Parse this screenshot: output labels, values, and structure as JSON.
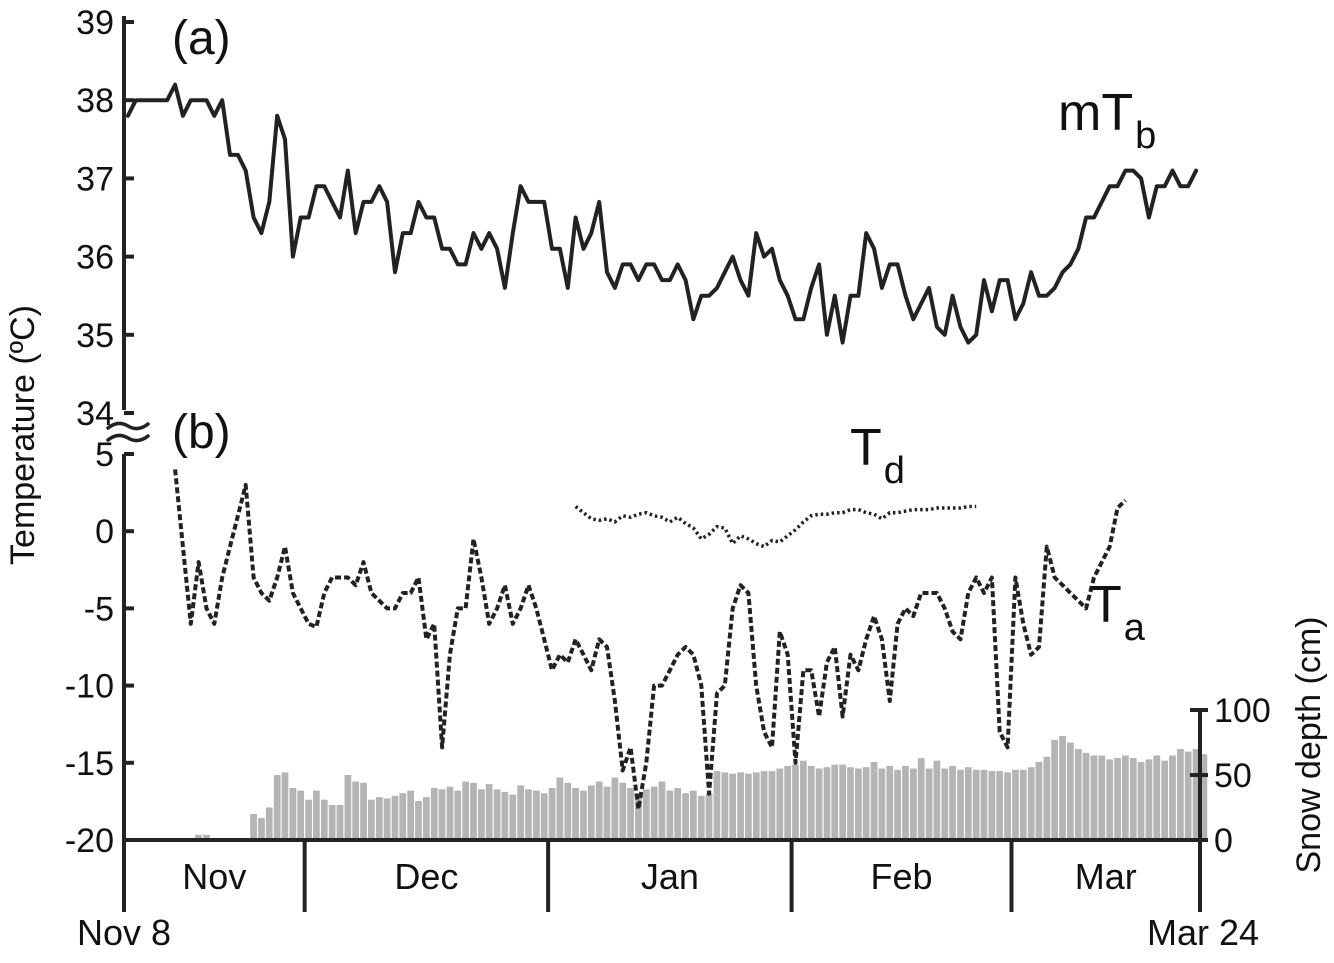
{
  "chart_data": {
    "type": "line",
    "x_axis": {
      "start_label": "Nov 8",
      "end_label": "Mar 24",
      "days": 137,
      "months": [
        "Nov",
        "Dec",
        "Jan",
        "Feb",
        "Mar"
      ]
    },
    "y_axis_left": {
      "title": "Temperature (ºC)",
      "upper_ticks": [
        "39",
        "38",
        "37",
        "36",
        "35",
        "34"
      ],
      "upper_range": [
        34,
        39
      ],
      "lower_ticks": [
        "5",
        "0",
        "-5",
        "-10",
        "-15",
        "-20"
      ],
      "lower_range": [
        -20,
        5
      ]
    },
    "y_axis_right": {
      "title": "Snow depth (cm)",
      "ticks": [
        "100",
        "50",
        "0"
      ],
      "range": [
        0,
        100
      ]
    },
    "panels": [
      {
        "label": "(a)"
      },
      {
        "label": "(b)"
      }
    ],
    "series": [
      {
        "name": "mT",
        "name_subscript": "b",
        "panel": "a",
        "style": "solid",
        "start_day": 0,
        "values": [
          37.8,
          38.0,
          38.0,
          38.0,
          38.0,
          38.0,
          38.2,
          37.8,
          38.0,
          38.0,
          38.0,
          37.8,
          38.0,
          37.3,
          37.3,
          37.1,
          36.5,
          36.3,
          36.7,
          37.8,
          37.5,
          36.0,
          36.5,
          36.5,
          36.9,
          36.9,
          36.7,
          36.5,
          37.1,
          36.3,
          36.7,
          36.7,
          36.9,
          36.7,
          35.8,
          36.3,
          36.3,
          36.7,
          36.5,
          36.5,
          36.1,
          36.1,
          35.9,
          35.9,
          36.3,
          36.1,
          36.3,
          36.1,
          35.6,
          36.3,
          36.9,
          36.7,
          36.7,
          36.7,
          36.1,
          36.1,
          35.6,
          36.5,
          36.1,
          36.3,
          36.7,
          35.8,
          35.6,
          35.9,
          35.9,
          35.7,
          35.9,
          35.9,
          35.7,
          35.7,
          35.9,
          35.7,
          35.2,
          35.5,
          35.5,
          35.6,
          35.8,
          36.0,
          35.7,
          35.5,
          36.3,
          36.0,
          36.1,
          35.7,
          35.5,
          35.2,
          35.2,
          35.6,
          35.9,
          35.0,
          35.5,
          34.9,
          35.5,
          35.5,
          36.3,
          36.1,
          35.6,
          35.9,
          35.9,
          35.5,
          35.2,
          35.4,
          35.6,
          35.1,
          35.0,
          35.5,
          35.1,
          34.9,
          35.0,
          35.7,
          35.3,
          35.7,
          35.7,
          35.2,
          35.4,
          35.8,
          35.5,
          35.5,
          35.6,
          35.8,
          35.9,
          36.1,
          36.5,
          36.5,
          36.7,
          36.9,
          36.9,
          37.1,
          37.1,
          37.0,
          36.5,
          36.9,
          36.9,
          37.1,
          36.9,
          36.9,
          37.1
        ]
      },
      {
        "name": "T",
        "name_subscript": "a",
        "panel": "b",
        "style": "dashed",
        "start_day": 6,
        "values": [
          4,
          -1,
          -6,
          -2,
          -5,
          -6,
          -3,
          -1,
          1,
          3,
          -3,
          -4,
          -4.5,
          -3,
          -1,
          -4,
          -5,
          -6,
          -6.2,
          -4,
          -3,
          -3,
          -3,
          -3.5,
          -2,
          -4,
          -4.5,
          -5,
          -5,
          -4,
          -4,
          -3,
          -7,
          -6,
          -14,
          -8,
          -5,
          -5,
          -0.5,
          -3,
          -6,
          -5,
          -3.5,
          -6,
          -5,
          -3.5,
          -5,
          -7,
          -9,
          -8,
          -8.5,
          -7,
          -8,
          -9,
          -7,
          -7.5,
          -11,
          -15.5,
          -14,
          -18,
          -15,
          -10,
          -10,
          -9,
          -8,
          -7.5,
          -8,
          -10,
          -17,
          -10.5,
          -10,
          -5,
          -3.5,
          -4,
          -10,
          -13,
          -14,
          -6.5,
          -8,
          -15,
          -9,
          -9,
          -12,
          -8.5,
          -7.5,
          -12,
          -8,
          -9,
          -7,
          -5.5,
          -7,
          -11,
          -6,
          -5,
          -5.5,
          -4,
          -4,
          -4,
          -5,
          -6.5,
          -7,
          -4,
          -3,
          -4,
          -3,
          -13,
          -14,
          -3,
          -6,
          -8,
          -7.5,
          -1,
          -3,
          -3.5,
          -4,
          -4.5,
          -5,
          -3,
          -2,
          -1,
          1.5,
          2
        ]
      },
      {
        "name": "T",
        "name_subscript": "d",
        "panel": "b",
        "style": "dotted",
        "start_day": 57,
        "values": [
          1.6,
          1.2,
          0.8,
          0.7,
          0.8,
          0.6,
          1.0,
          0.9,
          1.1,
          1.2,
          1.0,
          0.9,
          0.6,
          0.9,
          0.5,
          0.2,
          -0.5,
          -0.2,
          0.3,
          0.2,
          -0.8,
          -0.3,
          -0.5,
          -0.8,
          -1.0,
          -0.6,
          -0.7,
          -0.3,
          0.1,
          0.6,
          1.0,
          1.1,
          1.1,
          1.2,
          1.2,
          1.4,
          1.4,
          1.2,
          1.1,
          0.8,
          1.2,
          1.2,
          1.3,
          1.4,
          1.4,
          1.4,
          1.5,
          1.5,
          1.5,
          1.5,
          1.6,
          1.6
        ]
      },
      {
        "name": "Snow depth",
        "panel": "b",
        "style": "bars",
        "color": "#b4b4b4",
        "start_day": 0,
        "values": [
          0,
          0,
          0,
          0,
          0,
          0,
          0,
          0,
          0,
          4,
          4,
          0,
          0,
          0,
          0,
          0,
          20,
          17,
          25,
          50,
          52,
          40,
          38,
          31,
          38,
          31,
          27,
          27,
          50,
          45,
          44,
          31,
          33,
          32,
          34,
          36,
          38,
          30,
          33,
          40,
          39,
          41,
          38,
          45,
          44,
          39,
          43,
          39,
          37,
          35,
          42,
          39,
          38,
          36,
          40,
          48,
          44,
          40,
          38,
          42,
          45,
          41,
          48,
          44,
          40,
          36,
          39,
          41,
          45,
          38,
          40,
          36,
          38,
          34,
          36,
          53,
          52,
          51,
          52,
          51,
          52,
          53,
          53,
          55,
          57,
          58,
          61,
          57,
          55,
          56,
          58,
          58,
          56,
          55,
          56,
          60,
          55,
          57,
          54,
          57,
          55,
          63,
          55,
          61,
          55,
          57,
          54,
          56,
          54,
          54,
          53,
          53,
          52,
          54,
          54,
          56,
          60,
          64,
          77,
          80,
          75,
          70,
          67,
          65,
          65,
          62,
          63,
          65,
          63,
          60,
          62,
          65,
          61,
          65,
          70,
          68,
          70,
          66
        ]
      }
    ]
  }
}
